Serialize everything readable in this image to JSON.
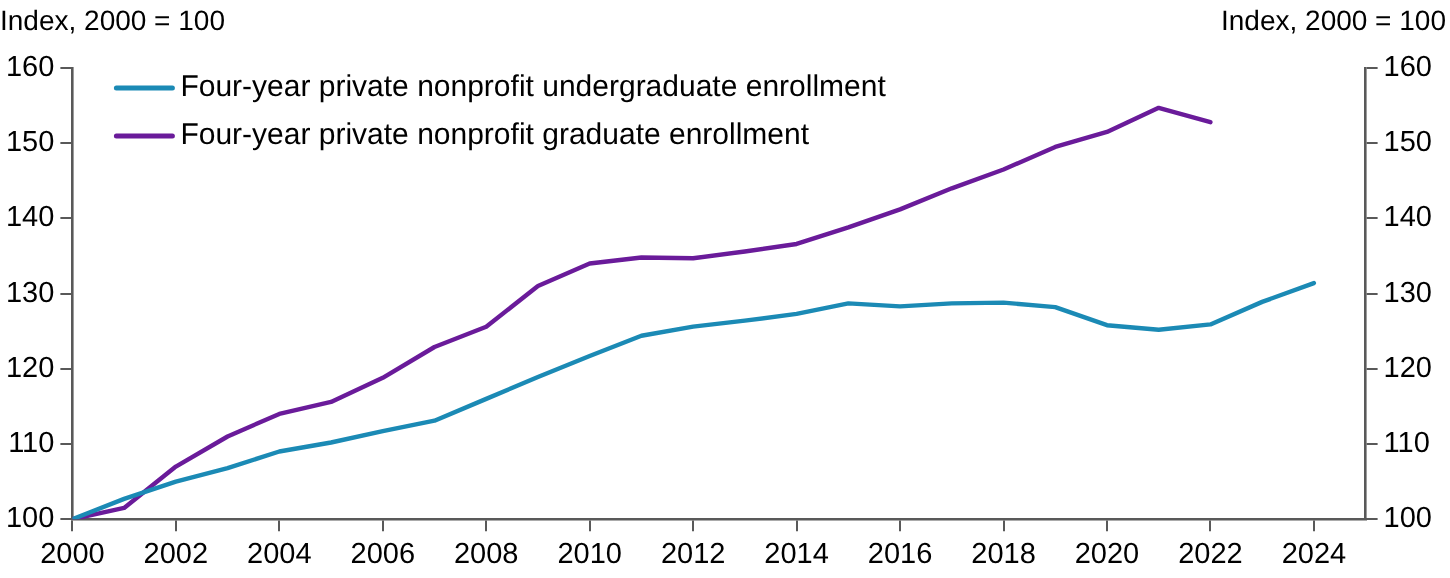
{
  "chart_data": {
    "type": "line",
    "ylabel": "Index, 2000 = 100",
    "y2label": "Index, 2000 = 100",
    "x": [
      2000,
      2001,
      2002,
      2003,
      2004,
      2005,
      2006,
      2007,
      2008,
      2009,
      2010,
      2011,
      2012,
      2013,
      2014,
      2015,
      2016,
      2017,
      2018,
      2019,
      2020,
      2021,
      2022,
      2023,
      2024
    ],
    "series": [
      {
        "name": "Four-year private nonprofit undergraduate enrollment",
        "color": "#1b8ab5",
        "values": [
          100,
          102.7,
          105,
          106.8,
          109,
          110.2,
          111.7,
          113.1,
          116,
          118.9,
          121.7,
          124.4,
          125.6,
          126.4,
          127.3,
          128.7,
          128.3,
          128.7,
          128.8,
          128.2,
          125.8,
          125.2,
          125.9,
          128.9,
          131.4
        ]
      },
      {
        "name": "Four-year private nonprofit graduate enrollment",
        "color": "#6a1b9a",
        "values": [
          100,
          101.5,
          107,
          111,
          114,
          115.6,
          118.8,
          122.9,
          125.6,
          131,
          134,
          134.8,
          134.7,
          135.6,
          136.6,
          138.8,
          141.2,
          144,
          146.5,
          149.5,
          151.5,
          154.7,
          152.8,
          null,
          null
        ]
      }
    ],
    "xlim": [
      2000,
      2025
    ],
    "xticks": [
      2000,
      2002,
      2004,
      2006,
      2008,
      2010,
      2012,
      2014,
      2016,
      2018,
      2020,
      2022,
      2024
    ],
    "ylim": [
      100,
      160
    ],
    "yticks": [
      100,
      110,
      120,
      130,
      140,
      150,
      160
    ],
    "y2lim": [
      100,
      160
    ],
    "y2ticks": [
      100,
      110,
      120,
      130,
      140,
      150,
      160
    ],
    "grid": false,
    "legend": "top left",
    "marker": "none",
    "line_style": "solid"
  }
}
